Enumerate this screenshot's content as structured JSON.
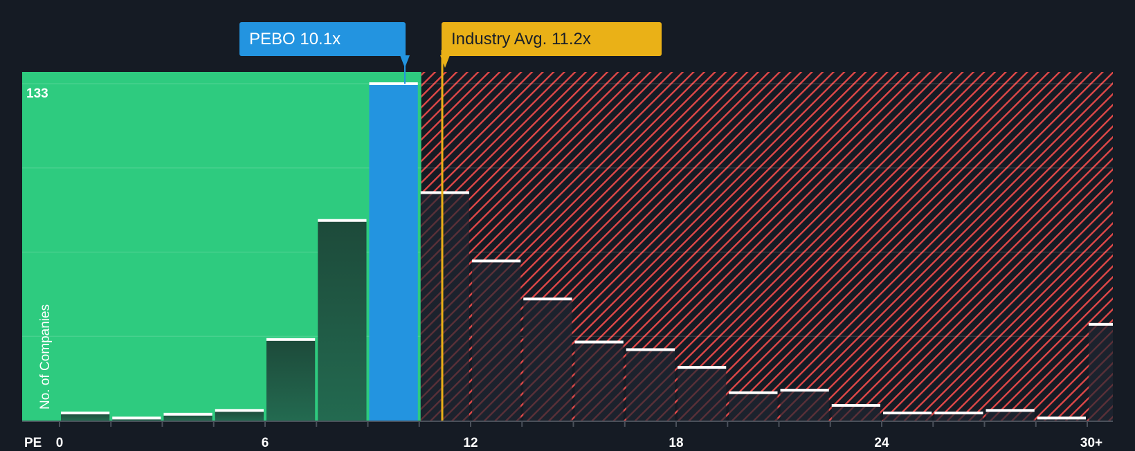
{
  "chart_data": {
    "type": "bar",
    "title": "",
    "xlabel": "PE",
    "ylabel": "No. of Companies",
    "ylim": [
      0,
      133
    ],
    "y_max_label": "133",
    "x_tick_labels": [
      "0",
      "6",
      "12",
      "18",
      "24",
      "30+"
    ],
    "bin_width": 1.5,
    "categories": [
      "0-1.5",
      "1.5-3",
      "3-4.5",
      "4.5-6",
      "6-7.5",
      "7.5-9",
      "9-10.5",
      "10.5-12",
      "12-13.5",
      "13.5-15",
      "15-16.5",
      "16.5-18",
      "18-19.5",
      "19.5-21",
      "21-22.5",
      "22.5-24",
      "24-25.5",
      "25.5-27",
      "27-28.5",
      "28.5-30",
      "30+"
    ],
    "values": [
      3,
      1,
      2.5,
      4,
      32,
      79,
      133,
      90,
      63,
      48,
      31,
      28,
      21,
      11,
      12,
      6,
      3,
      3,
      4,
      1,
      38
    ],
    "highlight_bin_index": 6,
    "grid": true,
    "legend": null,
    "annotations": [
      {
        "label": "PEBO 10.1x",
        "value": 10.1,
        "color": "#2394e0",
        "text_color": "#ffffff"
      },
      {
        "label": "Industry Avg. 11.2x",
        "value": 11.2,
        "color": "#eab117",
        "text_color": "#1a1f28"
      }
    ],
    "regions": [
      {
        "name": "undervalued",
        "from": 0,
        "to": 10.5,
        "color": "#2ecb7f"
      },
      {
        "name": "overvalued",
        "from": 10.5,
        "to": 31.5,
        "color": "#e04848",
        "pattern": "diagonal-hatch"
      }
    ]
  },
  "colors": {
    "background": "#151b24",
    "green": "#2ecb7f",
    "blue": "#2394e0",
    "gold": "#eab117",
    "hatch_red": "#e04848",
    "bar_dark": "#1f5c46",
    "bar_cap": "#ffffff"
  }
}
